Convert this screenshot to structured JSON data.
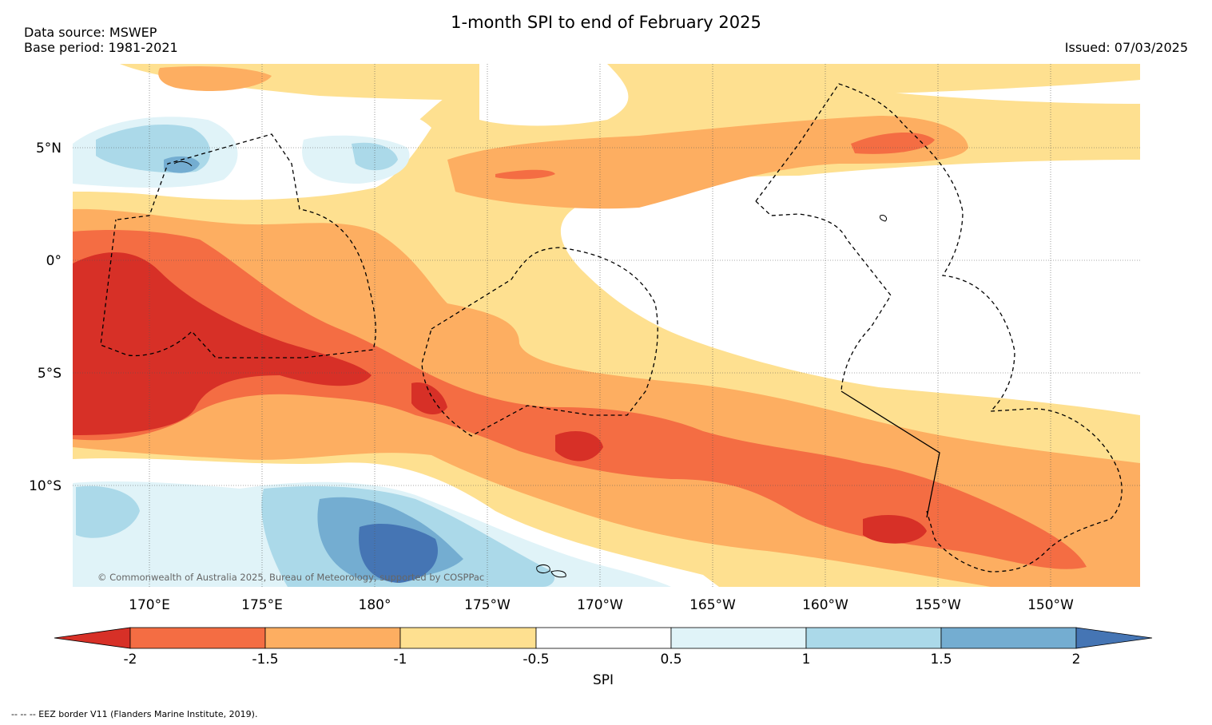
{
  "header": {
    "title": "1-month SPI to end of February 2025",
    "data_source": "Data source: MSWEP",
    "base_period": "Base period: 1981-2021",
    "issued": "Issued: 07/03/2025"
  },
  "map": {
    "lat_labels": [
      "5°N",
      "0°",
      "5°S",
      "10°S"
    ],
    "lon_labels": [
      "170°E",
      "175°E",
      "180°",
      "175°W",
      "170°W",
      "165°W",
      "160°W",
      "155°W",
      "150°W"
    ],
    "copyright": "© Commonwealth of Australia 2025, Bureau of Meteorology, supported by COSPPac"
  },
  "colorbar": {
    "label": "SPI",
    "ticks": [
      "-2",
      "-1.5",
      "-1",
      "-0.5",
      "0.5",
      "1",
      "1.5",
      "2"
    ],
    "colors": {
      "below_-2": "#d73027",
      "-2_to_-1.5": "#f46d43",
      "-1.5_to_-1": "#fdae61",
      "-1_to_-0.5": "#fee090",
      "-0.5_to_0.5": "#ffffff",
      "0.5_to_1": "#e0f3f8",
      "1_to_1.5": "#abd9e9",
      "1.5_to_2": "#74add1",
      "above_2": "#4575b4"
    }
  },
  "footnote": "--  --  -- EEZ border V11 (Flanders Marine Institute, 2019)."
}
